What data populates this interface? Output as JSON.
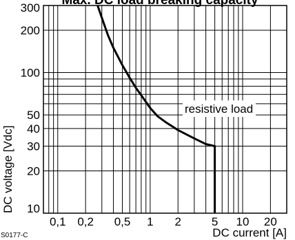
{
  "chart_data": {
    "type": "line",
    "title": "Max. DC load breaking capacity",
    "xlabel": "DC current [A]",
    "ylabel": "DC voltage [Vdc]",
    "x_scale": "log",
    "y_scale": "log",
    "xlim": [
      0.07,
      30
    ],
    "ylim": [
      10,
      300
    ],
    "x_ticks": [
      0.1,
      0.2,
      0.5,
      1,
      2,
      5,
      10,
      20
    ],
    "x_tick_labels": [
      "0,1",
      "0,2",
      "0,5",
      "1",
      "2",
      "5",
      "10",
      "20"
    ],
    "y_ticks": [
      10,
      20,
      30,
      40,
      50,
      100,
      200,
      300
    ],
    "y_tick_labels": [
      "10",
      "20",
      "30",
      "40",
      "50",
      "100",
      "200",
      "300"
    ],
    "grid": true,
    "annotations": [
      {
        "text": "resistive load",
        "x": 2.6,
        "y": 60
      },
      {
        "text": "S0177-C"
      }
    ],
    "series": [
      {
        "name": "resistive load",
        "x": [
          0.27,
          0.3,
          0.35,
          0.4,
          0.5,
          0.6,
          0.7,
          0.8,
          1.0,
          1.2,
          1.5,
          2.0,
          3.0,
          4.0,
          5.0,
          5.0
        ],
        "y": [
          300,
          245,
          184,
          150,
          113,
          92,
          78,
          69,
          56,
          49,
          44,
          39,
          34,
          31,
          30,
          10
        ]
      }
    ]
  }
}
